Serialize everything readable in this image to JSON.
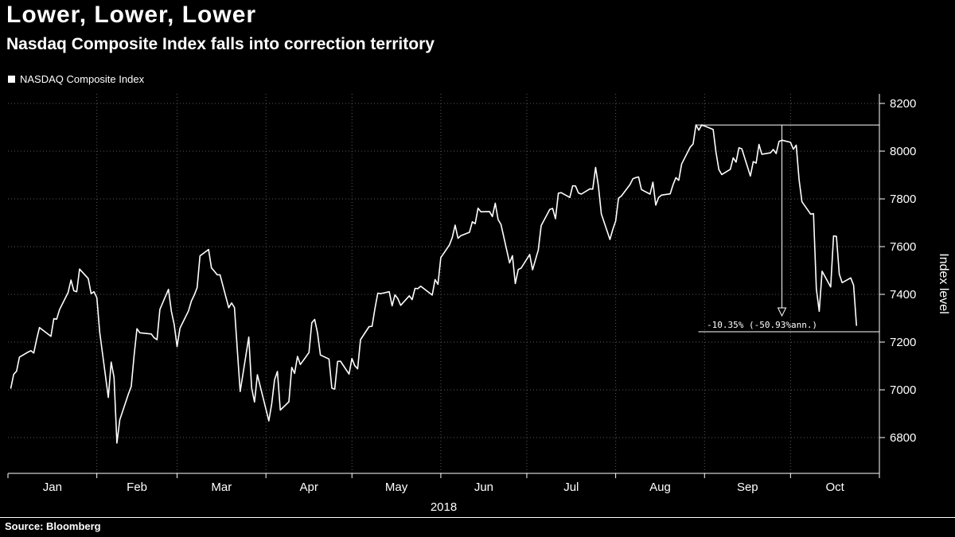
{
  "page": {
    "background": "#000000",
    "text_color": "#ffffff"
  },
  "header": {
    "title": "Lower, Lower, Lower",
    "subtitle": "Nasdaq Composite Index falls into correction territory"
  },
  "legend": {
    "label": "NASDAQ Composite Index",
    "marker_color": "#ffffff"
  },
  "footer": {
    "source": "Source: Bloomberg"
  },
  "chart_data": {
    "type": "line",
    "title": "Lower, Lower, Lower",
    "subtitle": "Nasdaq Composite Index falls into correction territory",
    "series_name": "NASDAQ Composite Index",
    "line_color": "#ffffff",
    "grid_color": "#5a5a5a",
    "grid": "dotted",
    "legend_position": "top-left",
    "x_axis": {
      "year_label": "2018",
      "tick_labels": [
        "Jan",
        "Feb",
        "Mar",
        "Apr",
        "May",
        "Jun",
        "Jul",
        "Aug",
        "Sep",
        "Oct"
      ],
      "month_start_days": [
        0,
        31,
        59,
        90,
        120,
        151,
        181,
        212,
        243,
        273,
        304
      ]
    },
    "y_axis": {
      "label": "Index level",
      "ticks": [
        6800,
        7000,
        7200,
        7400,
        7600,
        7800,
        8000,
        8200
      ],
      "range": [
        6650,
        8240
      ],
      "side": "right"
    },
    "annotation": {
      "label": "-10.35% (-50.93%ann.)",
      "peak_date": "08-29",
      "peak_value": 8109.69,
      "arrow_date": "09-28",
      "arrow_tip_value": 7310
    },
    "points": [
      [
        "01-02",
        7007
      ],
      [
        "01-03",
        7065
      ],
      [
        "01-04",
        7078
      ],
      [
        "01-05",
        7137
      ],
      [
        "01-08",
        7158
      ],
      [
        "01-09",
        7164
      ],
      [
        "01-10",
        7154
      ],
      [
        "01-11",
        7211
      ],
      [
        "01-12",
        7261
      ],
      [
        "01-16",
        7224
      ],
      [
        "01-17",
        7298
      ],
      [
        "01-18",
        7296
      ],
      [
        "01-19",
        7336
      ],
      [
        "01-22",
        7408
      ],
      [
        "01-23",
        7460
      ],
      [
        "01-24",
        7415
      ],
      [
        "01-25",
        7411
      ],
      [
        "01-26",
        7506
      ],
      [
        "01-29",
        7466
      ],
      [
        "01-30",
        7403
      ],
      [
        "01-31",
        7411
      ],
      [
        "02-01",
        7386
      ],
      [
        "02-02",
        7241
      ],
      [
        "02-05",
        6968
      ],
      [
        "02-06",
        7116
      ],
      [
        "02-07",
        7052
      ],
      [
        "02-08",
        6777
      ],
      [
        "02-09",
        6874
      ],
      [
        "02-12",
        6982
      ],
      [
        "02-13",
        7014
      ],
      [
        "02-14",
        7144
      ],
      [
        "02-15",
        7256
      ],
      [
        "02-16",
        7239
      ],
      [
        "02-20",
        7234
      ],
      [
        "02-21",
        7218
      ],
      [
        "02-22",
        7210
      ],
      [
        "02-23",
        7337
      ],
      [
        "02-26",
        7421
      ],
      [
        "02-27",
        7330
      ],
      [
        "02-28",
        7273
      ],
      [
        "03-01",
        7181
      ],
      [
        "03-02",
        7258
      ],
      [
        "03-05",
        7331
      ],
      [
        "03-06",
        7372
      ],
      [
        "03-07",
        7397
      ],
      [
        "03-08",
        7428
      ],
      [
        "03-09",
        7561
      ],
      [
        "03-12",
        7588
      ],
      [
        "03-13",
        7511
      ],
      [
        "03-14",
        7497
      ],
      [
        "03-15",
        7482
      ],
      [
        "03-16",
        7482
      ],
      [
        "03-19",
        7344
      ],
      [
        "03-20",
        7364
      ],
      [
        "03-21",
        7345
      ],
      [
        "03-22",
        7167
      ],
      [
        "03-23",
        6993
      ],
      [
        "03-26",
        7221
      ],
      [
        "03-27",
        7008
      ],
      [
        "03-28",
        6949
      ],
      [
        "03-29",
        7063
      ],
      [
        "04-02",
        6870
      ],
      [
        "04-03",
        6941
      ],
      [
        "04-04",
        7042
      ],
      [
        "04-05",
        7077
      ],
      [
        "04-06",
        6915
      ],
      [
        "04-09",
        6950
      ],
      [
        "04-10",
        7094
      ],
      [
        "04-11",
        7069
      ],
      [
        "04-12",
        7140
      ],
      [
        "04-13",
        7106
      ],
      [
        "04-16",
        7156
      ],
      [
        "04-17",
        7281
      ],
      [
        "04-18",
        7295
      ],
      [
        "04-19",
        7238
      ],
      [
        "04-20",
        7146
      ],
      [
        "04-23",
        7129
      ],
      [
        "04-24",
        7007
      ],
      [
        "04-25",
        7003
      ],
      [
        "04-26",
        7119
      ],
      [
        "04-27",
        7120
      ],
      [
        "04-30",
        7066
      ],
      [
        "05-01",
        7131
      ],
      [
        "05-02",
        7101
      ],
      [
        "05-03",
        7088
      ],
      [
        "05-04",
        7210
      ],
      [
        "05-07",
        7265
      ],
      [
        "05-08",
        7266
      ],
      [
        "05-09",
        7340
      ],
      [
        "05-10",
        7405
      ],
      [
        "05-11",
        7403
      ],
      [
        "05-14",
        7411
      ],
      [
        "05-15",
        7352
      ],
      [
        "05-16",
        7398
      ],
      [
        "05-17",
        7382
      ],
      [
        "05-18",
        7354
      ],
      [
        "05-21",
        7394
      ],
      [
        "05-22",
        7378
      ],
      [
        "05-23",
        7425
      ],
      [
        "05-24",
        7424
      ],
      [
        "05-25",
        7434
      ],
      [
        "05-29",
        7397
      ],
      [
        "05-30",
        7462
      ],
      [
        "05-31",
        7442
      ],
      [
        "06-01",
        7554
      ],
      [
        "06-04",
        7607
      ],
      [
        "06-05",
        7638
      ],
      [
        "06-06",
        7690
      ],
      [
        "06-07",
        7635
      ],
      [
        "06-08",
        7646
      ],
      [
        "06-11",
        7660
      ],
      [
        "06-12",
        7704
      ],
      [
        "06-13",
        7696
      ],
      [
        "06-14",
        7761
      ],
      [
        "06-15",
        7746
      ],
      [
        "06-18",
        7747
      ],
      [
        "06-19",
        7726
      ],
      [
        "06-20",
        7782
      ],
      [
        "06-21",
        7713
      ],
      [
        "06-22",
        7693
      ],
      [
        "06-25",
        7532
      ],
      [
        "06-26",
        7562
      ],
      [
        "06-27",
        7445
      ],
      [
        "06-28",
        7504
      ],
      [
        "06-29",
        7510
      ],
      [
        "07-02",
        7567
      ],
      [
        "07-03",
        7503
      ],
      [
        "07-05",
        7586
      ],
      [
        "07-06",
        7688
      ],
      [
        "07-09",
        7756
      ],
      [
        "07-10",
        7760
      ],
      [
        "07-11",
        7717
      ],
      [
        "07-12",
        7824
      ],
      [
        "07-13",
        7826
      ],
      [
        "07-16",
        7806
      ],
      [
        "07-17",
        7855
      ],
      [
        "07-18",
        7854
      ],
      [
        "07-19",
        7825
      ],
      [
        "07-20",
        7820
      ],
      [
        "07-23",
        7842
      ],
      [
        "07-24",
        7841
      ],
      [
        "07-25",
        7932
      ],
      [
        "07-26",
        7852
      ],
      [
        "07-27",
        7737
      ],
      [
        "07-30",
        7630
      ],
      [
        "07-31",
        7672
      ],
      [
        "08-01",
        7707
      ],
      [
        "08-02",
        7803
      ],
      [
        "08-03",
        7812
      ],
      [
        "08-06",
        7860
      ],
      [
        "08-07",
        7884
      ],
      [
        "08-08",
        7889
      ],
      [
        "08-09",
        7892
      ],
      [
        "08-10",
        7839
      ],
      [
        "08-13",
        7820
      ],
      [
        "08-14",
        7870
      ],
      [
        "08-15",
        7774
      ],
      [
        "08-16",
        7806
      ],
      [
        "08-17",
        7816
      ],
      [
        "08-20",
        7821
      ],
      [
        "08-21",
        7859
      ],
      [
        "08-22",
        7889
      ],
      [
        "08-23",
        7878
      ],
      [
        "08-24",
        7946
      ],
      [
        "08-27",
        8017
      ],
      [
        "08-28",
        8030
      ],
      [
        "08-29",
        8110
      ],
      [
        "08-30",
        8088
      ],
      [
        "08-31",
        8110
      ],
      [
        "09-04",
        8091
      ],
      [
        "09-05",
        7995
      ],
      [
        "09-06",
        7923
      ],
      [
        "09-07",
        7902
      ],
      [
        "09-10",
        7924
      ],
      [
        "09-11",
        7972
      ],
      [
        "09-12",
        7954
      ],
      [
        "09-13",
        8014
      ],
      [
        "09-14",
        8010
      ],
      [
        "09-17",
        7896
      ],
      [
        "09-18",
        7956
      ],
      [
        "09-19",
        7950
      ],
      [
        "09-20",
        8028
      ],
      [
        "09-21",
        7987
      ],
      [
        "09-24",
        7993
      ],
      [
        "09-25",
        8007
      ],
      [
        "09-26",
        7990
      ],
      [
        "09-27",
        8041
      ],
      [
        "09-28",
        8046
      ],
      [
        "10-01",
        8037
      ],
      [
        "10-02",
        8008
      ],
      [
        "10-03",
        8025
      ],
      [
        "10-04",
        7880
      ],
      [
        "10-05",
        7788
      ],
      [
        "10-08",
        7736
      ],
      [
        "10-09",
        7738
      ],
      [
        "10-10",
        7422
      ],
      [
        "10-11",
        7329
      ],
      [
        "10-12",
        7497
      ],
      [
        "10-15",
        7431
      ],
      [
        "10-16",
        7645
      ],
      [
        "10-17",
        7643
      ],
      [
        "10-18",
        7485
      ],
      [
        "10-19",
        7449
      ],
      [
        "10-22",
        7469
      ],
      [
        "10-23",
        7438
      ],
      [
        "10-24",
        7270
      ]
    ]
  }
}
